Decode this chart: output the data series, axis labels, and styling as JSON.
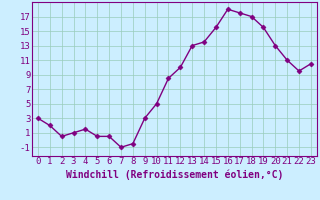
{
  "x": [
    0,
    1,
    2,
    3,
    4,
    5,
    6,
    7,
    8,
    9,
    10,
    11,
    12,
    13,
    14,
    15,
    16,
    17,
    18,
    19,
    20,
    21,
    22,
    23
  ],
  "y": [
    3,
    2,
    0.5,
    1,
    1.5,
    0.5,
    0.5,
    -1,
    -0.5,
    3,
    5,
    8.5,
    10,
    13,
    13.5,
    15.5,
    18,
    17.5,
    17,
    15.5,
    13,
    11,
    9.5,
    10.5
  ],
  "line_color": "#800080",
  "marker": "D",
  "marker_size": 2.5,
  "bg_color": "#cceeff",
  "grid_color": "#99ccbb",
  "xlabel": "Windchill (Refroidissement éolien,°C)",
  "xlim": [
    -0.5,
    23.5
  ],
  "ylim": [
    -2.2,
    19
  ],
  "yticks": [
    -1,
    1,
    3,
    5,
    7,
    9,
    11,
    13,
    15,
    17
  ],
  "xticks": [
    0,
    1,
    2,
    3,
    4,
    5,
    6,
    7,
    8,
    9,
    10,
    11,
    12,
    13,
    14,
    15,
    16,
    17,
    18,
    19,
    20,
    21,
    22,
    23
  ],
  "tick_color": "#800080",
  "label_color": "#800080",
  "font_size": 6.5,
  "xlabel_fontsize": 7,
  "linewidth": 1.0
}
